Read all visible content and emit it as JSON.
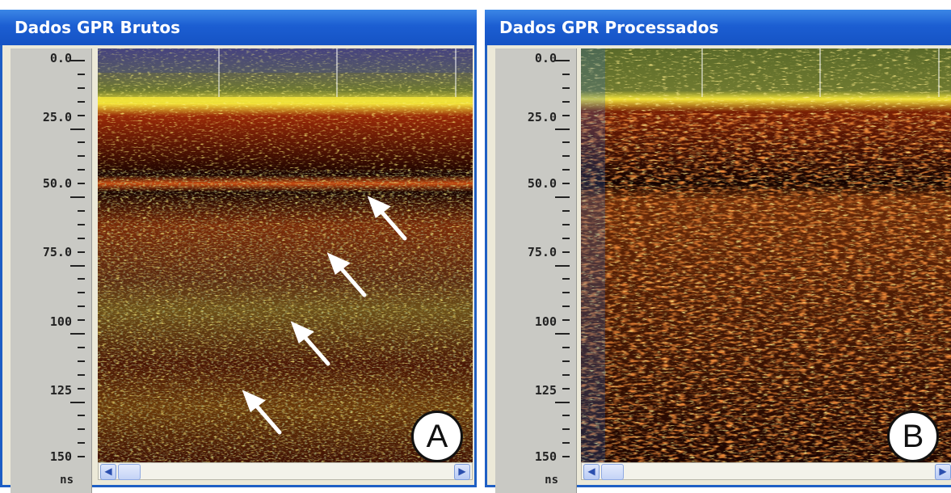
{
  "colors": {
    "title_bar": "#1c5ed2",
    "signal_high": "#f2e93a",
    "signal_mid": "#e05a12",
    "signal_low": "#3a0800",
    "noise_green": "#6f7d3a",
    "noise_blue": "#2b66c4"
  },
  "panels": [
    {
      "title": "Dados GPR Brutos",
      "label": "A",
      "ticks": [
        "0.0",
        "25.0",
        "50.0",
        "75.0",
        "100",
        "125",
        "150"
      ],
      "unit": "ns",
      "arrows": 4
    },
    {
      "title": "Dados GPR Processados",
      "label": "B",
      "ticks": [
        "0.0",
        "25.0",
        "50.0",
        "75.0",
        "100",
        "125",
        "150"
      ],
      "unit": "ns"
    }
  ],
  "scrollbar": {
    "left_icon": "chevron-left-icon",
    "right_icon": "chevron-right-icon"
  }
}
